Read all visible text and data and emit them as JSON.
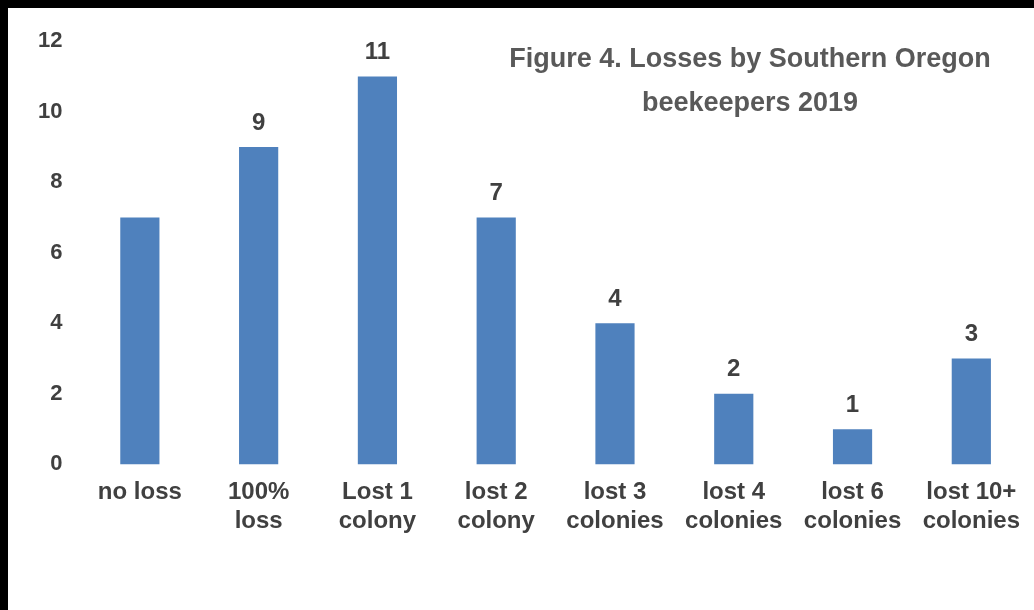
{
  "chart_data": {
    "type": "bar",
    "title": "Figure 4. Losses by Southern Oregon beekeepers 2019",
    "categories": [
      "no loss",
      "100% loss",
      "Lost 1 colony",
      "lost 2 colony",
      "lost 3 colonies",
      "lost 4 colonies",
      "lost 6 colonies",
      "lost 10+ colonies"
    ],
    "values": [
      7,
      9,
      11,
      7,
      4,
      2,
      1,
      3
    ],
    "value_labels": [
      null,
      "9",
      "11",
      "7",
      "4",
      "2",
      "1",
      "3"
    ],
    "color": "#4f81bd",
    "ylim": [
      0,
      12
    ],
    "yticks": [
      0,
      2,
      4,
      6,
      8,
      10,
      12
    ],
    "grid": false,
    "legend": false
  }
}
